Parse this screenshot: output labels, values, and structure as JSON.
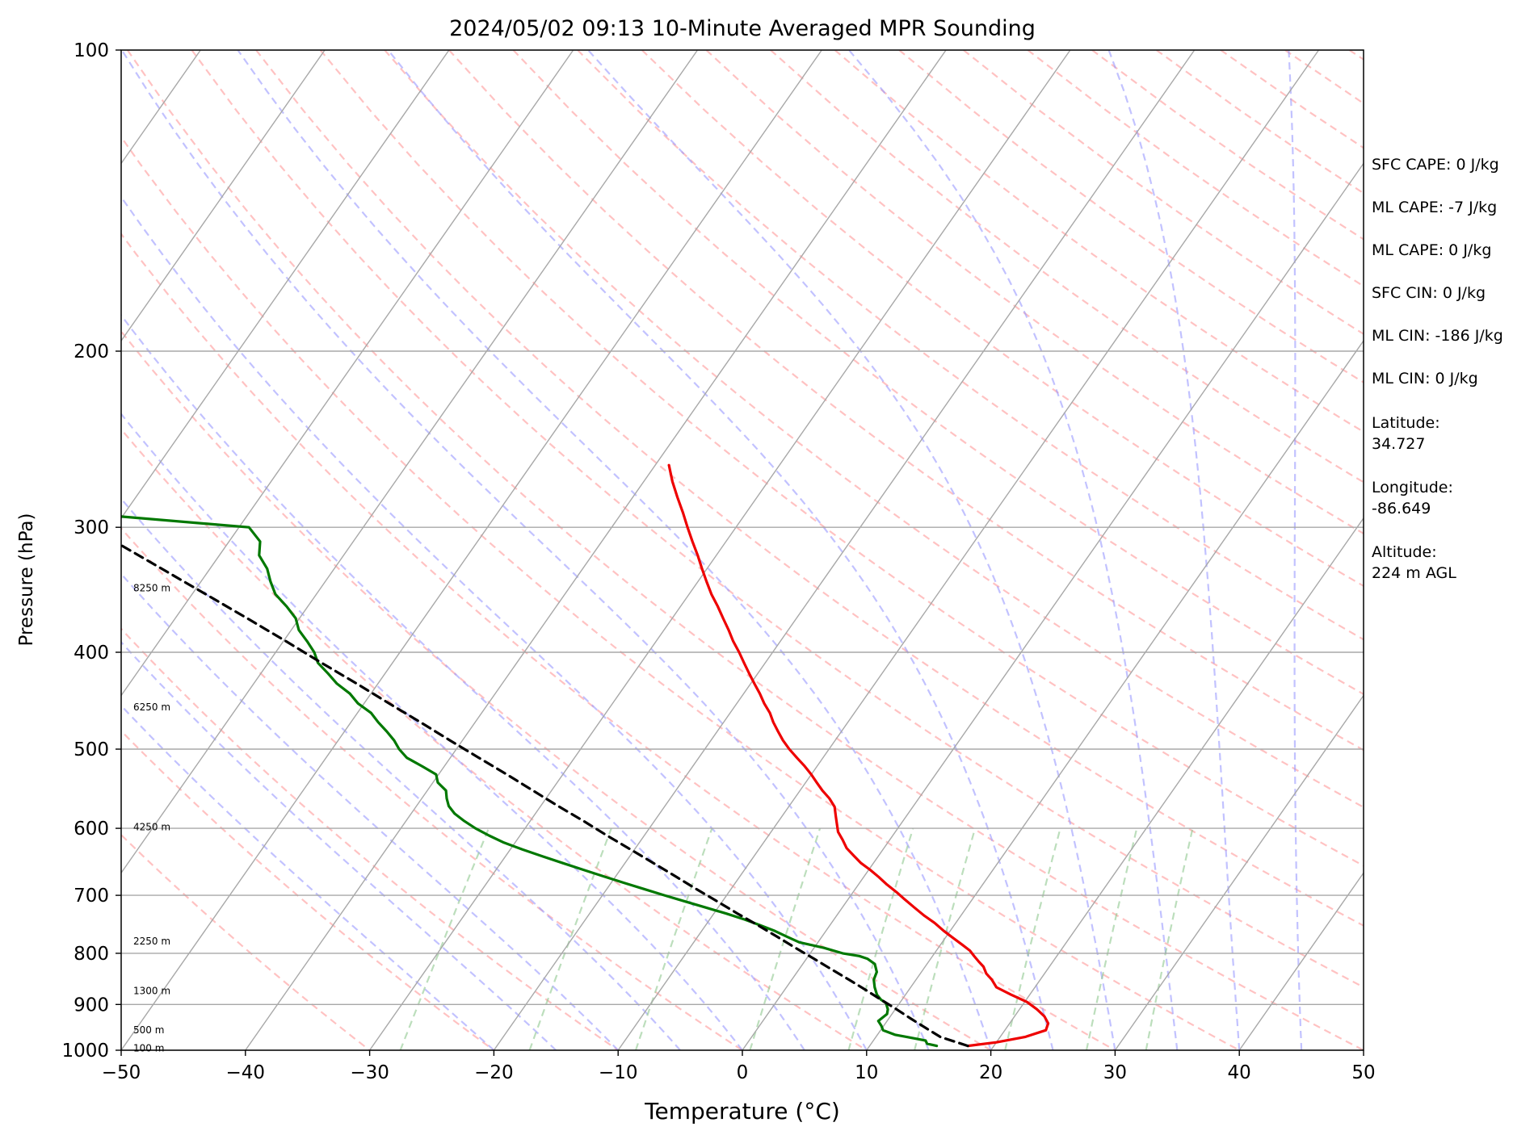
{
  "chart_data": {
    "type": "line",
    "title": "2024/05/02 09:13 10-Minute Averaged MPR Sounding",
    "xlabel": "Temperature (°C)",
    "ylabel": "Pressure (hPa)",
    "xlim": [
      -50,
      50
    ],
    "ylim": [
      1000,
      100
    ],
    "y_scale": "log",
    "skew": true,
    "x_ticks": [
      "−50",
      "−40",
      "−30",
      "−20",
      "−10",
      "0",
      "10",
      "20",
      "30",
      "40",
      "50"
    ],
    "y_ticks": [
      "100",
      "200",
      "300",
      "400",
      "500",
      "600",
      "700",
      "800",
      "900",
      "1000"
    ],
    "grid": "horizontal at labeled pressures, skewed isotherms",
    "background_lines": [
      {
        "kind": "dry adiabats",
        "color": "#ff9a9a",
        "style": "dashed"
      },
      {
        "kind": "moist adiabats",
        "color": "#9a9aff",
        "style": "dashed"
      },
      {
        "kind": "mixing ratio lines",
        "color": "#90c890",
        "style": "dashed"
      }
    ],
    "height_labels": [
      {
        "text": "8250 m",
        "pressure": 345
      },
      {
        "text": "6250 m",
        "pressure": 454
      },
      {
        "text": "4250 m",
        "pressure": 598
      },
      {
        "text": "2250 m",
        "pressure": 778
      },
      {
        "text": "1300 m",
        "pressure": 872
      },
      {
        "text": "500 m",
        "pressure": 955
      },
      {
        "text": "100 m",
        "pressure": 995
      }
    ],
    "series": [
      {
        "role": "temperature",
        "color": "#ee0000",
        "style": "solid",
        "points": [
          [
            17.9,
            990
          ],
          [
            20,
            982
          ],
          [
            22,
            970
          ],
          [
            23.3,
            955
          ],
          [
            23.1,
            940
          ],
          [
            22.4,
            925
          ],
          [
            21.4,
            910
          ],
          [
            20.2,
            895
          ],
          [
            18.5,
            880
          ],
          [
            16.9,
            865
          ],
          [
            16.1,
            850
          ],
          [
            15.3,
            838
          ],
          [
            14.7,
            825
          ],
          [
            14,
            815
          ],
          [
            13.4,
            806
          ],
          [
            12.7,
            795
          ],
          [
            11.8,
            785
          ],
          [
            10.8,
            774
          ],
          [
            9.5,
            760
          ],
          [
            8.3,
            746
          ],
          [
            7,
            733
          ],
          [
            5.8,
            720
          ],
          [
            4.6,
            707
          ],
          [
            3.5,
            695
          ],
          [
            2.3,
            683
          ],
          [
            1.2,
            671
          ],
          [
            0.1,
            660
          ],
          [
            -1,
            650
          ],
          [
            -2,
            639
          ],
          [
            -3,
            628
          ],
          [
            -3.8,
            616
          ],
          [
            -4.6,
            605
          ],
          [
            -5.2,
            593
          ],
          [
            -5.7,
            583
          ],
          [
            -6.3,
            571
          ],
          [
            -7.2,
            560
          ],
          [
            -8.2,
            550
          ],
          [
            -9.1,
            540
          ],
          [
            -10,
            530
          ],
          [
            -11,
            520
          ],
          [
            -12.1,
            510
          ],
          [
            -13.2,
            500
          ],
          [
            -14.2,
            490
          ],
          [
            -15.1,
            480
          ],
          [
            -16,
            470
          ],
          [
            -16.8,
            460
          ],
          [
            -17.8,
            450
          ],
          [
            -18.7,
            440
          ],
          [
            -19.7,
            430
          ],
          [
            -20.7,
            420
          ],
          [
            -21.7,
            410
          ],
          [
            -22.7,
            400
          ],
          [
            -23.8,
            390
          ],
          [
            -24.8,
            380
          ],
          [
            -25.9,
            370
          ],
          [
            -27,
            360
          ],
          [
            -28.2,
            350
          ],
          [
            -29.3,
            340
          ],
          [
            -30.4,
            330
          ],
          [
            -31.5,
            320
          ],
          [
            -32.7,
            310
          ],
          [
            -33.9,
            300
          ],
          [
            -35.1,
            290
          ],
          [
            -36.4,
            280
          ],
          [
            -37.7,
            270
          ],
          [
            -38.9,
            260
          ]
        ]
      },
      {
        "role": "dewpoint",
        "color": "#007800",
        "style": "solid",
        "points": [
          [
            15.4,
            990
          ],
          [
            14.5,
            985
          ],
          [
            14.2,
            978
          ],
          [
            12.5,
            970
          ],
          [
            11.4,
            965
          ],
          [
            10.2,
            955
          ],
          [
            9.8,
            945
          ],
          [
            9.3,
            935
          ],
          [
            9.6,
            920
          ],
          [
            9.4,
            910
          ],
          [
            8.9,
            897
          ],
          [
            8.3,
            890
          ],
          [
            7.7,
            880
          ],
          [
            7.1,
            865
          ],
          [
            6.6,
            850
          ],
          [
            6.4,
            835
          ],
          [
            5.8,
            820
          ],
          [
            4.9,
            810
          ],
          [
            4.1,
            805
          ],
          [
            2.6,
            800
          ],
          [
            0.8,
            790
          ],
          [
            -1.5,
            780
          ],
          [
            -2.8,
            770
          ],
          [
            -4.1,
            760
          ],
          [
            -5.6,
            750
          ],
          [
            -7.2,
            740
          ],
          [
            -9,
            730
          ],
          [
            -11,
            720
          ],
          [
            -13,
            710
          ],
          [
            -15,
            700
          ],
          [
            -17,
            690
          ],
          [
            -19,
            680
          ],
          [
            -21,
            670
          ],
          [
            -23,
            660
          ],
          [
            -25,
            650
          ],
          [
            -27,
            640
          ],
          [
            -29,
            630
          ],
          [
            -30.9,
            620
          ],
          [
            -32.5,
            610
          ],
          [
            -34,
            600
          ],
          [
            -35.3,
            590
          ],
          [
            -36.5,
            580
          ],
          [
            -37.4,
            570
          ],
          [
            -38,
            560
          ],
          [
            -38.5,
            550
          ],
          [
            -39.6,
            540
          ],
          [
            -40.2,
            530
          ],
          [
            -41.8,
            520
          ],
          [
            -43.5,
            510
          ],
          [
            -44.6,
            500
          ],
          [
            -45.5,
            490
          ],
          [
            -46.6,
            480
          ],
          [
            -47.8,
            470
          ],
          [
            -48.9,
            460
          ],
          [
            -50.5,
            450
          ],
          [
            -51.7,
            440
          ],
          [
            -53.3,
            430
          ],
          [
            -54.6,
            420
          ],
          [
            -56,
            410
          ],
          [
            -56.9,
            400
          ],
          [
            -58.1,
            390
          ],
          [
            -59.4,
            380
          ],
          [
            -60.3,
            370
          ],
          [
            -61.7,
            360
          ],
          [
            -63.3,
            350
          ],
          [
            -64.4,
            340
          ],
          [
            -65.4,
            330
          ],
          [
            -66.8,
            320
          ],
          [
            -67.5,
            310
          ],
          [
            -69.2,
            300
          ],
          [
            -84.2,
            290
          ],
          [
            -86.2,
            287
          ]
        ]
      },
      {
        "role": "parcel",
        "color": "#000000",
        "style": "dashed",
        "points": [
          [
            17.9,
            990
          ],
          [
            15.2,
            970
          ],
          [
            13.5,
            950
          ],
          [
            11.8,
            930
          ],
          [
            10.1,
            910
          ],
          [
            8.3,
            890
          ],
          [
            6.5,
            870
          ],
          [
            4.6,
            850
          ],
          [
            2.6,
            830
          ],
          [
            0.6,
            810
          ],
          [
            -1.5,
            790
          ],
          [
            -3.6,
            770
          ],
          [
            -5.8,
            750
          ],
          [
            -8.1,
            730
          ],
          [
            -10.4,
            710
          ],
          [
            -12.8,
            690
          ],
          [
            -15.2,
            670
          ],
          [
            -17.7,
            650
          ],
          [
            -20.3,
            630
          ],
          [
            -23,
            610
          ],
          [
            -25.7,
            590
          ],
          [
            -28.6,
            570
          ],
          [
            -31.5,
            550
          ],
          [
            -34.5,
            530
          ],
          [
            -37.7,
            510
          ],
          [
            -41,
            490
          ],
          [
            -44.4,
            470
          ],
          [
            -48,
            450
          ],
          [
            -51.7,
            430
          ],
          [
            -55.7,
            410
          ],
          [
            -59.8,
            390
          ],
          [
            -64.2,
            370
          ],
          [
            -68.9,
            350
          ],
          [
            -73.9,
            330
          ],
          [
            -79.2,
            310
          ],
          [
            -84.9,
            290
          ],
          [
            -87.9,
            280
          ],
          [
            -91,
            270
          ],
          [
            -94.3,
            260
          ]
        ]
      }
    ]
  },
  "side_panel": {
    "sfc_cape": "SFC CAPE: 0 J/kg",
    "ml_cape_a": "ML CAPE: -7 J/kg",
    "ml_cape_b": "ML CAPE: 0 J/kg",
    "sfc_cin": "SFC CIN: 0 J/kg",
    "ml_cin_a": "ML CIN: -186 J/kg",
    "ml_cin_b": "ML CIN: 0 J/kg",
    "lat_label": "Latitude:",
    "lat_value": "34.727",
    "lon_label": "Longitude:",
    "lon_value": "-86.649",
    "alt_label": "Altitude:",
    "alt_value": "224 m AGL"
  }
}
